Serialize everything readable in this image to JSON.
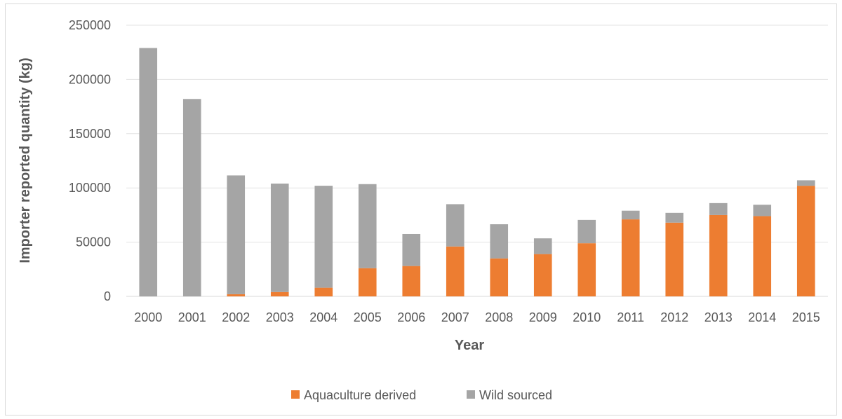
{
  "chart_data": {
    "type": "bar",
    "stacked": true,
    "categories": [
      "2000",
      "2001",
      "2002",
      "2003",
      "2004",
      "2005",
      "2006",
      "2007",
      "2008",
      "2009",
      "2010",
      "2011",
      "2012",
      "2013",
      "2014",
      "2015"
    ],
    "series": [
      {
        "name": "Aquaculture derived",
        "color": "#ed7d31",
        "values": [
          0,
          0,
          2000,
          4000,
          8000,
          26000,
          28000,
          46000,
          35000,
          39000,
          49000,
          71000,
          68000,
          75000,
          74000,
          102000
        ]
      },
      {
        "name": "Wild sourced",
        "color": "#a5a5a5",
        "values": [
          229000,
          182000,
          109500,
          100000,
          94000,
          77500,
          29500,
          39000,
          31500,
          14500,
          21500,
          8000,
          9000,
          11000,
          10500,
          5000
        ]
      }
    ],
    "xlabel": "Year",
    "ylabel": "Importer reported quantity (kg)",
    "ylim": [
      0,
      250000
    ],
    "yticks": [
      "0",
      "50000",
      "100000",
      "150000",
      "200000",
      "250000"
    ],
    "grid": true,
    "legend_position": "bottom"
  }
}
